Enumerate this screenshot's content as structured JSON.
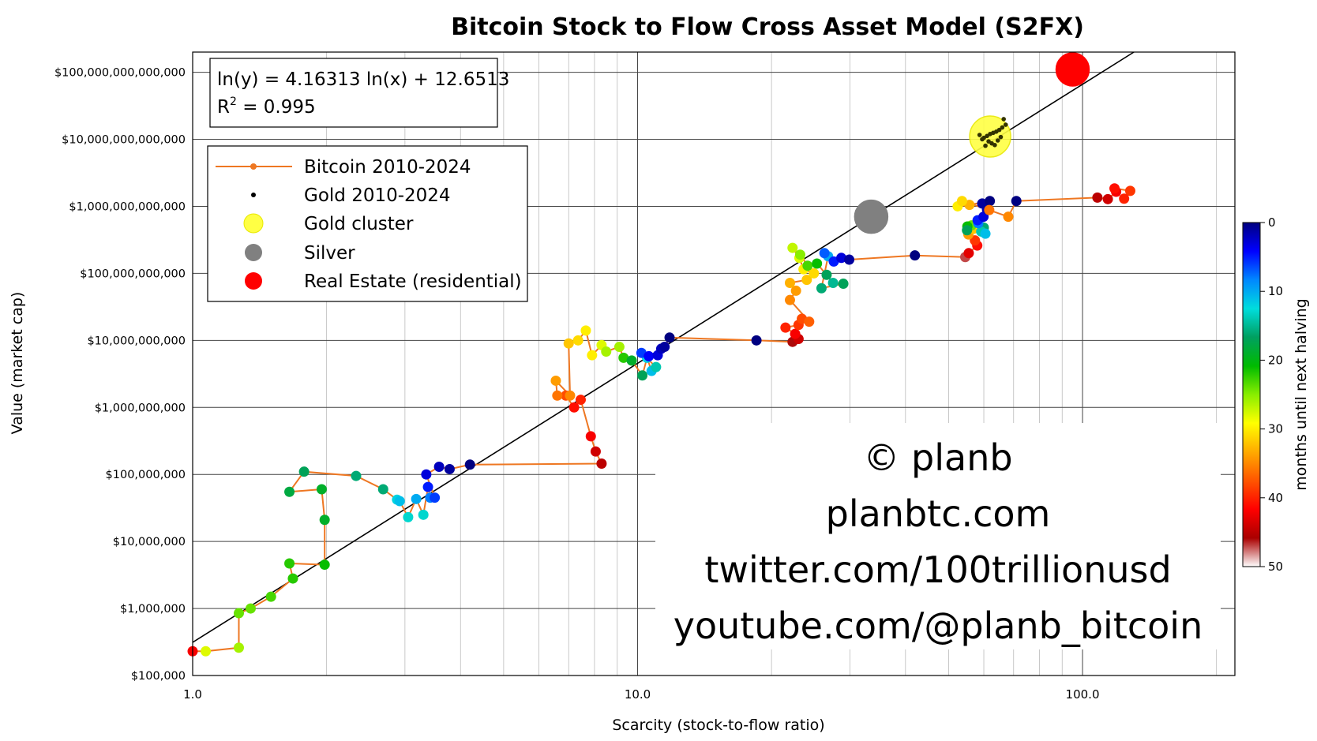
{
  "chart_data": {
    "type": "scatter",
    "title": "Bitcoin Stock to Flow Cross Asset Model (S2FX)",
    "xlabel": "Scarcity (stock-to-flow ratio)",
    "ylabel": "Value (market cap)",
    "xscale": "log",
    "yscale": "log",
    "xlim": [
      1.0,
      220
    ],
    "ylim": [
      100000,
      200000000000000
    ],
    "xticks": [
      1,
      10,
      100
    ],
    "xtick_labels": [
      "1.0",
      "10.0",
      "100.0"
    ],
    "yticks": [
      100000,
      1000000,
      10000000,
      100000000,
      1000000000,
      10000000000,
      100000000000,
      1000000000000,
      10000000000000,
      100000000000000
    ],
    "ytick_labels": [
      "$100,000",
      "$1,000,000",
      "$10,000,000",
      "$100,000,000",
      "$1,000,000,000",
      "$10,000,000,000",
      "$100,000,000,000",
      "$1,000,000,000,000",
      "$10,000,000,000,000",
      "$100,000,000,000,000"
    ],
    "grid": true,
    "legend_position": "top-left",
    "regression": {
      "equation": "ln(y) = 4.16313 ln(x) + 12.6513",
      "r2_label": "R",
      "r2_sup": "2",
      "r2_value": " = 0.995",
      "slope": 4.16313,
      "intercept": 12.6513
    },
    "legend": [
      {
        "label": "Bitcoin 2010-2024",
        "marker": "line-dot",
        "color": "#ee7722"
      },
      {
        "label": "Gold 2010-2024",
        "marker": "small-dot",
        "color": "#000000"
      },
      {
        "label": "Gold cluster",
        "marker": "circle",
        "color": "#ffff44"
      },
      {
        "label": "Silver",
        "marker": "circle",
        "color": "#808080"
      },
      {
        "label": "Real Estate (residential)",
        "marker": "circle",
        "color": "#ff0000"
      }
    ],
    "colorbar": {
      "label": "months until next halving",
      "ticks": [
        0,
        10,
        20,
        30,
        40,
        50
      ],
      "tick_labels": [
        "0",
        "10",
        "20",
        "30",
        "40",
        "50"
      ],
      "colors": [
        "#000080",
        "#0000ff",
        "#0088ff",
        "#00dddd",
        "#00a060",
        "#00bb00",
        "#88ee00",
        "#ffff00",
        "#ffaa00",
        "#ff5500",
        "#ff0000",
        "#aa0000",
        "#ffffff"
      ]
    },
    "assets": [
      {
        "name": "Gold cluster",
        "x": 62,
        "y": 11000000000000,
        "color": "#ffff44",
        "stroke": "#e8e800"
      },
      {
        "name": "Silver",
        "x": 33.5,
        "y": 700000000000,
        "color": "#808080",
        "stroke": "#808080"
      },
      {
        "name": "Real Estate (residential)",
        "x": 95,
        "y": 110000000000000,
        "color": "#ff0000",
        "stroke": "#ff0000"
      }
    ],
    "gold_points": [
      [
        66.5,
        20000000000000
      ],
      [
        67.2,
        16500000000000
      ],
      [
        66,
        15000000000000
      ],
      [
        65,
        13800000000000
      ],
      [
        64,
        13000000000000
      ],
      [
        63,
        12500000000000
      ],
      [
        62,
        12000000000000
      ],
      [
        61,
        11200000000000
      ],
      [
        60,
        10500000000000
      ],
      [
        59.5,
        10000000000000
      ],
      [
        61.5,
        9300000000000
      ],
      [
        62.5,
        8700000000000
      ],
      [
        63.5,
        8200000000000
      ],
      [
        60.5,
        8000000000000
      ],
      [
        64.5,
        9600000000000
      ],
      [
        58.7,
        11600000000000
      ],
      [
        65.5,
        10800000000000
      ]
    ],
    "bitcoin_series": [
      [
        1.0,
        230000,
        42
      ],
      [
        1.07,
        230000,
        28
      ],
      [
        1.27,
        260000,
        26
      ],
      [
        1.27,
        850000,
        24
      ],
      [
        1.35,
        1000000,
        24
      ],
      [
        1.5,
        1500000,
        23
      ],
      [
        1.68,
        2800000,
        22
      ],
      [
        1.65,
        4700000,
        22
      ],
      [
        1.98,
        4500000,
        21
      ],
      [
        1.98,
        21000000,
        19
      ],
      [
        1.95,
        60000000,
        19
      ],
      [
        1.65,
        55000000,
        18
      ],
      [
        1.78,
        110000000,
        17
      ],
      [
        2.33,
        95000000,
        16
      ],
      [
        2.68,
        60000000,
        16
      ],
      [
        2.88,
        42000000,
        12
      ],
      [
        2.92,
        40000000,
        11
      ],
      [
        3.05,
        23000000,
        13
      ],
      [
        3.18,
        43000000,
        10
      ],
      [
        3.3,
        25000000,
        13
      ],
      [
        3.38,
        65000000,
        5
      ],
      [
        3.42,
        45000000,
        8
      ],
      [
        3.5,
        45000000,
        6
      ],
      [
        3.35,
        100000000,
        3
      ],
      [
        3.58,
        130000000,
        2
      ],
      [
        3.78,
        120000000,
        1
      ],
      [
        4.2,
        140000000,
        0
      ],
      [
        8.3,
        145000000,
        45
      ],
      [
        8.05,
        220000000,
        44
      ],
      [
        7.85,
        370000000,
        42
      ],
      [
        7.45,
        1300000000,
        40
      ],
      [
        7.2,
        1000000000,
        41
      ],
      [
        6.9,
        1500000000,
        38
      ],
      [
        6.6,
        1500000000,
        36
      ],
      [
        6.55,
        2500000000,
        34
      ],
      [
        7.05,
        1500000000,
        35
      ],
      [
        7.0,
        9000000000,
        32
      ],
      [
        7.35,
        10000000000,
        31
      ],
      [
        7.65,
        14000000000,
        30
      ],
      [
        7.9,
        6000000000,
        30
      ],
      [
        8.3,
        8500000000,
        28
      ],
      [
        8.5,
        6800000000,
        26
      ],
      [
        9.1,
        8000000000,
        26
      ],
      [
        9.3,
        5500000000,
        22
      ],
      [
        9.7,
        5000000000,
        19
      ],
      [
        10.25,
        3000000000,
        17
      ],
      [
        10.5,
        5500000000,
        12
      ],
      [
        10.75,
        3500000000,
        11
      ],
      [
        11.0,
        4000000000,
        14
      ],
      [
        10.2,
        6500000000,
        6
      ],
      [
        10.6,
        5800000000,
        4
      ],
      [
        11.1,
        6000000000,
        3
      ],
      [
        11.3,
        7500000000,
        2
      ],
      [
        11.5,
        8000000000,
        1
      ],
      [
        11.8,
        11000000000,
        0
      ],
      [
        18.5,
        10000000000,
        0
      ],
      [
        22.3,
        9500000000,
        46
      ],
      [
        23.0,
        10500000000,
        44
      ],
      [
        22.6,
        12500000000,
        42
      ],
      [
        21.5,
        15500000000,
        40
      ],
      [
        23.0,
        17000000000,
        39
      ],
      [
        23.4,
        21000000000,
        38
      ],
      [
        24.3,
        19000000000,
        37
      ],
      [
        22.0,
        40000000000,
        35
      ],
      [
        22.7,
        55000000000,
        34
      ],
      [
        22.0,
        72000000000,
        33
      ],
      [
        24.0,
        80000000000,
        32
      ],
      [
        24.9,
        100000000000,
        31
      ],
      [
        23.6,
        115000000000,
        30
      ],
      [
        23.1,
        170000000000,
        28
      ],
      [
        22.3,
        240000000000,
        27
      ],
      [
        23.2,
        190000000000,
        25
      ],
      [
        24.1,
        130000000000,
        23
      ],
      [
        25.3,
        140000000000,
        21
      ],
      [
        26.6,
        95000000000,
        17
      ],
      [
        27.5,
        72000000000,
        15
      ],
      [
        29.0,
        70000000000,
        17
      ],
      [
        25.9,
        60000000000,
        16
      ],
      [
        26.8,
        180000000000,
        10
      ],
      [
        26.3,
        200000000000,
        7
      ],
      [
        27.6,
        150000000000,
        5
      ],
      [
        28.7,
        170000000000,
        3
      ],
      [
        29.9,
        160000000000,
        1
      ],
      [
        42.0,
        185000000000,
        0
      ],
      [
        54.5,
        175000000000,
        47
      ],
      [
        55.5,
        200000000000,
        43
      ],
      [
        58.0,
        260000000000,
        41
      ],
      [
        57.3,
        310000000000,
        39
      ],
      [
        55.4,
        380000000000,
        34
      ],
      [
        56.8,
        460000000000,
        32
      ],
      [
        57.9,
        550000000000,
        30
      ],
      [
        56.3,
        520000000000,
        24
      ],
      [
        55.1,
        500000000000,
        21
      ],
      [
        55.0,
        440000000000,
        17
      ],
      [
        60.0,
        480000000000,
        16
      ],
      [
        59.2,
        420000000000,
        14
      ],
      [
        60.5,
        390000000000,
        11
      ],
      [
        58.3,
        560000000000,
        8
      ],
      [
        58.1,
        620000000000,
        5
      ],
      [
        59.9,
        700000000000,
        3
      ],
      [
        61.0,
        900000000000,
        2
      ],
      [
        59.5,
        1100000000000,
        1
      ],
      [
        61.9,
        1200000000000,
        0
      ],
      [
        55.7,
        1050000000000,
        33
      ],
      [
        52.4,
        1000000000000,
        30
      ],
      [
        53.6,
        1200000000000,
        31
      ],
      [
        61.7,
        880000000000,
        36
      ],
      [
        68.1,
        700000000000,
        35
      ],
      [
        71.0,
        1200000000000,
        0
      ],
      [
        108,
        1350000000000,
        45
      ],
      [
        114,
        1280000000000,
        44
      ],
      [
        119,
        1650000000000,
        42
      ],
      [
        118,
        1850000000000,
        41
      ],
      [
        128,
        1700000000000,
        39
      ],
      [
        124,
        1300000000000,
        40
      ]
    ]
  },
  "watermark": {
    "line1": "© planb",
    "line2": "planbtc.com",
    "line3": "twitter.com/100trillionusd",
    "line4": "youtube.com/@planb_bitcoin"
  }
}
